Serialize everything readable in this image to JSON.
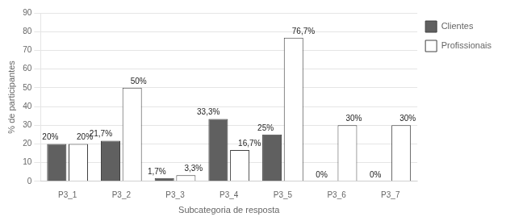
{
  "chart_data": {
    "type": "bar",
    "x_label": "Subcategoria de resposta",
    "y_label": "% de participantes",
    "categories": [
      "P3_1",
      "P3_2",
      "P3_3",
      "P3_4",
      "P3_5",
      "P3_6",
      "P3_7"
    ],
    "series": [
      {
        "name": "Clientes",
        "color": "#606060",
        "values": [
          20.0,
          21.7,
          1.7,
          33.3,
          25.0,
          0.0,
          0.0
        ],
        "value_labels": [
          "20%",
          "21,7%",
          "1,7%",
          "33,3%",
          "25%",
          "0%",
          "0%"
        ]
      },
      {
        "name": "Profissionais",
        "color": "#ffffff",
        "values": [
          20.0,
          50.0,
          3.3,
          16.7,
          76.7,
          30.0,
          30.0
        ],
        "value_labels": [
          "20%",
          "50%",
          "3,3%",
          "16,7%",
          "76,7%",
          "30%",
          "30%"
        ]
      }
    ],
    "ylim": [
      0,
      90
    ],
    "yticks": [
      0,
      10,
      20,
      30,
      40,
      50,
      60,
      70,
      80,
      90
    ],
    "grid": true,
    "legend": "right",
    "data_labels": true
  }
}
